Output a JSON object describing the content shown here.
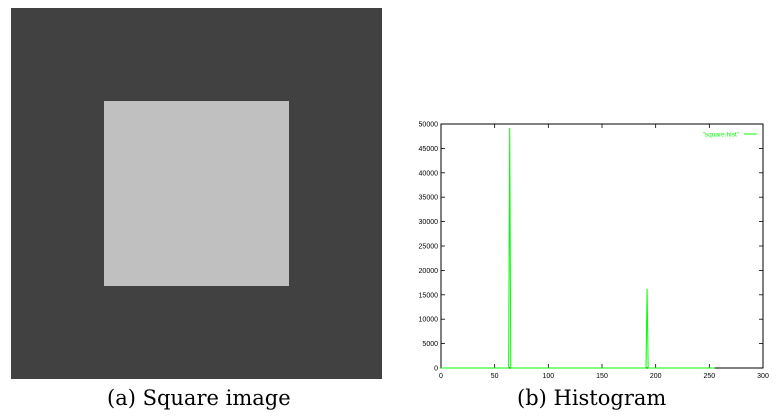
{
  "figure": {
    "left_panel": {
      "outer_color": "#414141",
      "inner_color": "#c0c0c0",
      "caption": "(a) Square image"
    },
    "right_panel": {
      "caption": "(b) Histogram"
    }
  },
  "chart_data": {
    "type": "line",
    "title": "",
    "xlabel": "",
    "ylabel": "",
    "xlim": [
      0,
      300
    ],
    "ylim": [
      0,
      50000
    ],
    "x_ticks": [
      0,
      50,
      100,
      150,
      200,
      250,
      300
    ],
    "y_ticks": [
      0,
      5000,
      10000,
      15000,
      20000,
      25000,
      30000,
      35000,
      40000,
      45000,
      50000
    ],
    "grid": false,
    "legend_position": "top-right",
    "series": [
      {
        "name": "\"square.hist\"",
        "color": "#00ff00",
        "points": [
          [
            0,
            0
          ],
          [
            62,
            0
          ],
          [
            63,
            0
          ],
          [
            64,
            49200
          ],
          [
            65,
            0
          ],
          [
            66,
            0
          ],
          [
            190,
            0
          ],
          [
            191,
            0
          ],
          [
            192,
            16200
          ],
          [
            193,
            0
          ],
          [
            194,
            0
          ],
          [
            255,
            0
          ]
        ]
      }
    ]
  }
}
